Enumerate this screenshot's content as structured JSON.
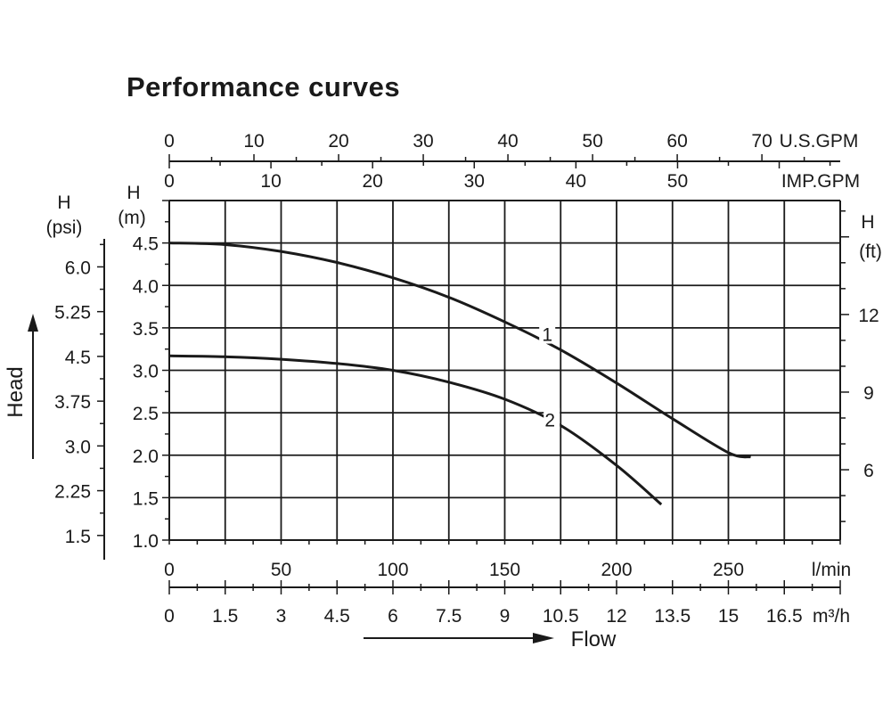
{
  "title": "Performance curves",
  "chart_data": {
    "type": "line",
    "title": "Performance curves",
    "x_axes": {
      "lmin": {
        "unit": "l/min",
        "range": [
          0,
          300
        ],
        "ticks": [
          0,
          50,
          100,
          150,
          200,
          250
        ],
        "tick_labels": [
          "0",
          "50",
          "100",
          "150",
          "200",
          "250"
        ]
      },
      "m3h": {
        "unit": "m³/h",
        "range": [
          0,
          18
        ],
        "ticks": [
          0,
          1.5,
          3,
          4.5,
          6,
          7.5,
          9,
          10.5,
          12,
          13.5,
          15,
          16.5
        ],
        "tick_labels": [
          "0",
          "1.5",
          "3",
          "4.5",
          "6",
          "7.5",
          "9",
          "10.5",
          "12",
          "13.5",
          "15",
          "16.5"
        ]
      },
      "usgpm": {
        "unit": "U.S.GPM",
        "range": [
          0,
          79.25
        ],
        "ticks": [
          0,
          10,
          20,
          30,
          40,
          50,
          60,
          70
        ],
        "tick_labels": [
          "0",
          "10",
          "20",
          "30",
          "40",
          "50",
          "60",
          "70"
        ]
      },
      "impgpm": {
        "unit": "IMP.GPM",
        "range": [
          0,
          66
        ],
        "ticks": [
          0,
          10,
          20,
          30,
          40,
          50
        ],
        "tick_labels": [
          "0",
          "10",
          "20",
          "30",
          "40",
          "50"
        ]
      }
    },
    "y_axes": {
      "m": {
        "label": "H",
        "unit": "(m)",
        "range": [
          1.0,
          5.0
        ],
        "ticks": [
          1.0,
          1.5,
          2.0,
          2.5,
          3.0,
          3.5,
          4.0,
          4.5
        ],
        "tick_labels": [
          "1.0",
          "1.5",
          "2.0",
          "2.5",
          "3.0",
          "3.5",
          "4.0",
          "4.5"
        ]
      },
      "psi": {
        "label": "H",
        "unit": "(psi)",
        "ticks": [
          1.5,
          2.25,
          3.0,
          3.75,
          4.5,
          5.25,
          6.0
        ],
        "tick_labels": [
          "1.5",
          "2.25",
          "3.0",
          "3.75",
          "4.5",
          "5.25",
          "6.0"
        ]
      },
      "ft": {
        "label": "H",
        "unit": "(ft)",
        "ticks": [
          6,
          9,
          12
        ],
        "tick_labels": [
          "6",
          "9",
          "12"
        ]
      }
    },
    "xlabel": "Flow",
    "ylabel": "Head",
    "grid": true,
    "series": [
      {
        "name": "1",
        "x": [
          0,
          25,
          50,
          75,
          100,
          125,
          150,
          175,
          200,
          225,
          250,
          260
        ],
        "y": [
          4.5,
          4.48,
          4.4,
          4.27,
          4.09,
          3.86,
          3.57,
          3.24,
          2.85,
          2.43,
          2.03,
          1.98
        ]
      },
      {
        "name": "2",
        "x": [
          0,
          25,
          50,
          75,
          100,
          125,
          150,
          175,
          200,
          220
        ],
        "y": [
          3.17,
          3.16,
          3.13,
          3.08,
          3.0,
          2.86,
          2.66,
          2.35,
          1.88,
          1.42
        ]
      }
    ]
  }
}
